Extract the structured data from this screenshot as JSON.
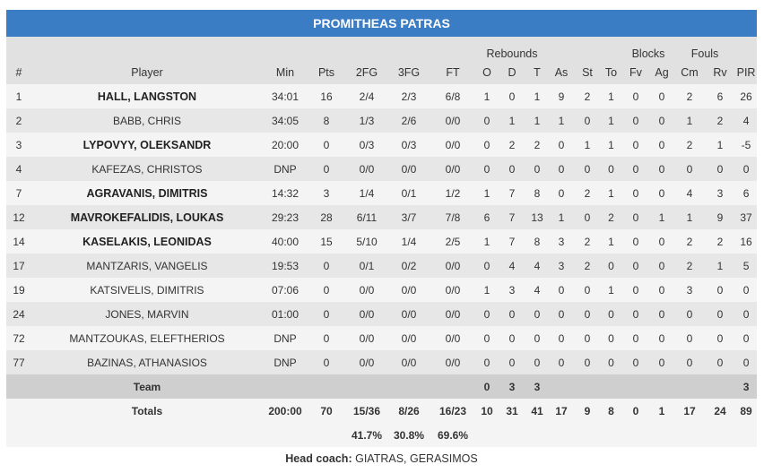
{
  "team_title": "PROMITHEAS PATRAS",
  "group_headers": {
    "rebounds": "Rebounds",
    "blocks": "Blocks",
    "fouls": "Fouls"
  },
  "columns": [
    "#",
    "Player",
    "Min",
    "Pts",
    "2FG",
    "3FG",
    "FT",
    "O",
    "D",
    "T",
    "As",
    "St",
    "To",
    "Fv",
    "Ag",
    "Cm",
    "Rv",
    "PIR"
  ],
  "players": [
    {
      "num": "1",
      "name": "HALL, LANGSTON",
      "starter": true,
      "min": "34:01",
      "pts": "16",
      "fg2": "2/4",
      "fg3": "2/3",
      "ft": "6/8",
      "o": "1",
      "d": "0",
      "t": "1",
      "as": "9",
      "st": "2",
      "to": "1",
      "fv": "0",
      "ag": "0",
      "cm": "2",
      "rv": "6",
      "pir": "26"
    },
    {
      "num": "2",
      "name": "BABB, CHRIS",
      "starter": false,
      "min": "34:05",
      "pts": "8",
      "fg2": "1/3",
      "fg3": "2/6",
      "ft": "0/0",
      "o": "0",
      "d": "1",
      "t": "1",
      "as": "1",
      "st": "0",
      "to": "1",
      "fv": "0",
      "ag": "0",
      "cm": "1",
      "rv": "2",
      "pir": "4"
    },
    {
      "num": "3",
      "name": "LYPOVYY, OLEKSANDR",
      "starter": true,
      "min": "20:00",
      "pts": "0",
      "fg2": "0/3",
      "fg3": "0/3",
      "ft": "0/0",
      "o": "0",
      "d": "2",
      "t": "2",
      "as": "0",
      "st": "1",
      "to": "1",
      "fv": "0",
      "ag": "0",
      "cm": "2",
      "rv": "1",
      "pir": "-5"
    },
    {
      "num": "4",
      "name": "KAFEZAS, CHRISTOS",
      "starter": false,
      "min": "DNP",
      "pts": "0",
      "fg2": "0/0",
      "fg3": "0/0",
      "ft": "0/0",
      "o": "0",
      "d": "0",
      "t": "0",
      "as": "0",
      "st": "0",
      "to": "0",
      "fv": "0",
      "ag": "0",
      "cm": "0",
      "rv": "0",
      "pir": "0"
    },
    {
      "num": "7",
      "name": "AGRAVANIS, DIMITRIS",
      "starter": true,
      "min": "14:32",
      "pts": "3",
      "fg2": "1/4",
      "fg3": "0/1",
      "ft": "1/2",
      "o": "1",
      "d": "7",
      "t": "8",
      "as": "0",
      "st": "2",
      "to": "1",
      "fv": "0",
      "ag": "0",
      "cm": "4",
      "rv": "3",
      "pir": "6"
    },
    {
      "num": "12",
      "name": "MAVROKEFALIDIS, LOUKAS",
      "starter": true,
      "min": "29:23",
      "pts": "28",
      "fg2": "6/11",
      "fg3": "3/7",
      "ft": "7/8",
      "o": "6",
      "d": "7",
      "t": "13",
      "as": "1",
      "st": "0",
      "to": "2",
      "fv": "0",
      "ag": "1",
      "cm": "1",
      "rv": "9",
      "pir": "37"
    },
    {
      "num": "14",
      "name": "KASELAKIS, LEONIDAS",
      "starter": true,
      "min": "40:00",
      "pts": "15",
      "fg2": "5/10",
      "fg3": "1/4",
      "ft": "2/5",
      "o": "1",
      "d": "7",
      "t": "8",
      "as": "3",
      "st": "2",
      "to": "1",
      "fv": "0",
      "ag": "0",
      "cm": "2",
      "rv": "2",
      "pir": "16"
    },
    {
      "num": "17",
      "name": "MANTZARIS, VANGELIS",
      "starter": false,
      "min": "19:53",
      "pts": "0",
      "fg2": "0/1",
      "fg3": "0/2",
      "ft": "0/0",
      "o": "0",
      "d": "4",
      "t": "4",
      "as": "3",
      "st": "2",
      "to": "0",
      "fv": "0",
      "ag": "0",
      "cm": "2",
      "rv": "1",
      "pir": "5"
    },
    {
      "num": "19",
      "name": "KATSIVELIS, DIMITRIS",
      "starter": false,
      "min": "07:06",
      "pts": "0",
      "fg2": "0/0",
      "fg3": "0/0",
      "ft": "0/0",
      "o": "1",
      "d": "3",
      "t": "4",
      "as": "0",
      "st": "0",
      "to": "1",
      "fv": "0",
      "ag": "0",
      "cm": "3",
      "rv": "0",
      "pir": "0"
    },
    {
      "num": "24",
      "name": "JONES, MARVIN",
      "starter": false,
      "min": "01:00",
      "pts": "0",
      "fg2": "0/0",
      "fg3": "0/0",
      "ft": "0/0",
      "o": "0",
      "d": "0",
      "t": "0",
      "as": "0",
      "st": "0",
      "to": "0",
      "fv": "0",
      "ag": "0",
      "cm": "0",
      "rv": "0",
      "pir": "0"
    },
    {
      "num": "72",
      "name": "MANTZOUKAS, ELEFTHERIOS",
      "starter": false,
      "min": "DNP",
      "pts": "0",
      "fg2": "0/0",
      "fg3": "0/0",
      "ft": "0/0",
      "o": "0",
      "d": "0",
      "t": "0",
      "as": "0",
      "st": "0",
      "to": "0",
      "fv": "0",
      "ag": "0",
      "cm": "0",
      "rv": "0",
      "pir": "0"
    },
    {
      "num": "77",
      "name": "BAZINAS, ATHANASIOS",
      "starter": false,
      "min": "DNP",
      "pts": "0",
      "fg2": "0/0",
      "fg3": "0/0",
      "ft": "0/0",
      "o": "0",
      "d": "0",
      "t": "0",
      "as": "0",
      "st": "0",
      "to": "0",
      "fv": "0",
      "ag": "0",
      "cm": "0",
      "rv": "0",
      "pir": "0"
    }
  ],
  "team_row": {
    "label": "Team",
    "o": "0",
    "d": "3",
    "t": "3",
    "pir": "3"
  },
  "totals_row": {
    "label": "Totals",
    "min": "200:00",
    "pts": "70",
    "fg2": "15/36",
    "fg3": "8/26",
    "ft": "16/23",
    "o": "10",
    "d": "31",
    "t": "41",
    "as": "17",
    "st": "9",
    "to": "8",
    "fv": "0",
    "ag": "1",
    "cm": "17",
    "rv": "24",
    "pir": "89"
  },
  "pct_row": {
    "fg2": "41.7%",
    "fg3": "30.8%",
    "ft": "69.6%"
  },
  "coach": {
    "label": "Head coach:",
    "name": "GIATRAS, GERASIMOS"
  },
  "colors": {
    "header_blue": "#3b7dc4",
    "header_gray": "#e1e1e1",
    "row_light": "#f4f4f4",
    "row_dark": "#e7e7e7",
    "team_row": "#cfcfcf"
  }
}
